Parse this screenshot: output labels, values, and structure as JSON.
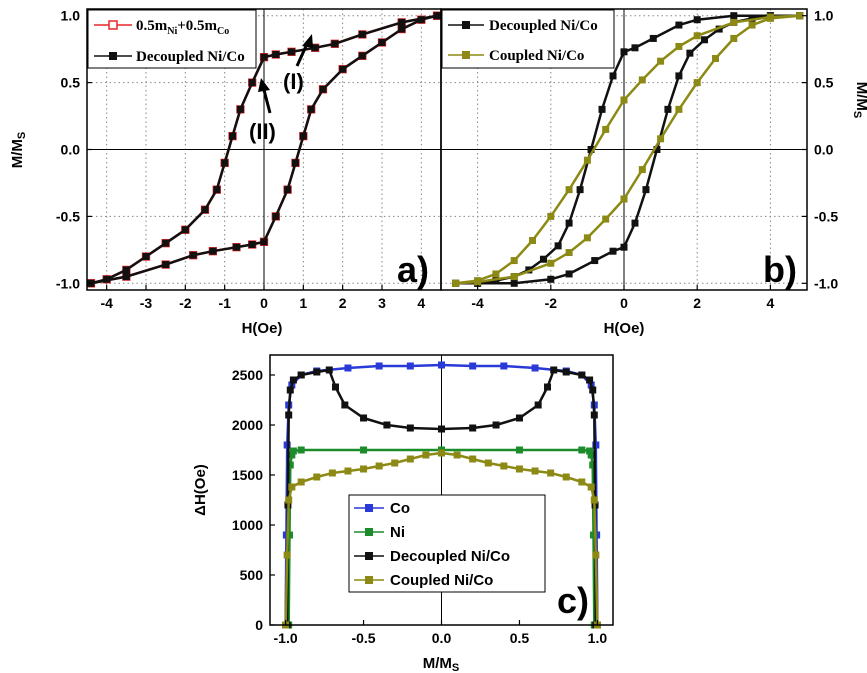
{
  "chart_data": [
    {
      "type": "line",
      "panel_label": "a)",
      "xlabel": "H(Oe)",
      "ylabel": "M/MS",
      "xlim": [
        -4.5,
        4.5
      ],
      "ylim": [
        -1.05,
        1.05
      ],
      "x_ticks": [
        "-4",
        "-3",
        "-2",
        "-1",
        "0",
        "1",
        "2",
        "3",
        "4"
      ],
      "y_ticks": [
        "-1.0",
        "-0.5",
        "0.0",
        "0.5",
        "1.0"
      ],
      "grid": "dotted",
      "legend_position": "top-left",
      "annotations": [
        "(I)",
        "(II)"
      ],
      "series": [
        {
          "name": "0.5mNi+0.5mCo",
          "color": "#e8262a",
          "marker": "open-square",
          "branch_descending": {
            "x": [
              4.4,
              3.5,
              2.5,
              1.8,
              1.3,
              0.7,
              0.3,
              0.0,
              -0.3,
              -0.6,
              -0.8,
              -1.0,
              -1.2,
              -1.5,
              -2.0,
              -2.5,
              -3.0,
              -3.5,
              -4.0,
              -4.4
            ],
            "y": [
              1.0,
              0.95,
              0.86,
              0.79,
              0.76,
              0.73,
              0.71,
              0.69,
              0.5,
              0.3,
              0.1,
              -0.1,
              -0.3,
              -0.45,
              -0.6,
              -0.7,
              -0.8,
              -0.9,
              -0.97,
              -1.0
            ]
          },
          "branch_ascending": {
            "x": [
              -4.4,
              -3.5,
              -2.5,
              -1.8,
              -1.3,
              -0.7,
              -0.3,
              0.0,
              0.3,
              0.6,
              0.8,
              1.0,
              1.2,
              1.5,
              2.0,
              2.5,
              3.0,
              3.5,
              4.0,
              4.4
            ],
            "y": [
              -1.0,
              -0.95,
              -0.86,
              -0.79,
              -0.76,
              -0.73,
              -0.71,
              -0.69,
              -0.5,
              -0.3,
              -0.1,
              0.1,
              0.3,
              0.45,
              0.6,
              0.7,
              0.8,
              0.9,
              0.97,
              1.0
            ]
          }
        },
        {
          "name": "Decoupled Ni/Co",
          "color": "#111111",
          "marker": "filled-square",
          "branch_descending": {
            "x": [
              4.4,
              3.5,
              2.5,
              1.8,
              1.3,
              0.7,
              0.3,
              0.0,
              -0.3,
              -0.6,
              -0.8,
              -1.0,
              -1.2,
              -1.5,
              -2.0,
              -2.5,
              -3.0,
              -3.5,
              -4.0,
              -4.4
            ],
            "y": [
              1.0,
              0.95,
              0.86,
              0.79,
              0.76,
              0.73,
              0.71,
              0.69,
              0.5,
              0.3,
              0.1,
              -0.1,
              -0.3,
              -0.45,
              -0.6,
              -0.7,
              -0.8,
              -0.9,
              -0.97,
              -1.0
            ]
          },
          "branch_ascending": {
            "x": [
              -4.4,
              -3.5,
              -2.5,
              -1.8,
              -1.3,
              -0.7,
              -0.3,
              0.0,
              0.3,
              0.6,
              0.8,
              1.0,
              1.2,
              1.5,
              2.0,
              2.5,
              3.0,
              3.5,
              4.0,
              4.4
            ],
            "y": [
              -1.0,
              -0.95,
              -0.86,
              -0.79,
              -0.76,
              -0.73,
              -0.71,
              -0.69,
              -0.5,
              -0.3,
              -0.1,
              0.1,
              0.3,
              0.45,
              0.6,
              0.7,
              0.8,
              0.9,
              0.97,
              1.0
            ]
          }
        }
      ]
    },
    {
      "type": "line",
      "panel_label": "b)",
      "xlabel": "H(Oe)",
      "ylabel": "M/MS",
      "xlim": [
        -5,
        5
      ],
      "ylim": [
        -1.05,
        1.05
      ],
      "x_ticks": [
        "-4",
        "-2",
        "0",
        "2",
        "4"
      ],
      "y_ticks": [
        "-1.0",
        "-0.5",
        "0.0",
        "0.5",
        "1.0"
      ],
      "grid": "dotted",
      "legend_position": "top-left",
      "series": [
        {
          "name": "Decoupled Ni/Co",
          "color": "#111111",
          "marker": "filled-square",
          "branch_descending": {
            "x": [
              4.8,
              4.0,
              3.0,
              2.0,
              1.5,
              0.8,
              0.3,
              0.0,
              -0.3,
              -0.6,
              -0.9,
              -1.2,
              -1.5,
              -1.8,
              -2.2,
              -2.6,
              -3.0,
              -3.5,
              -4.0,
              -4.6
            ],
            "y": [
              1.0,
              1.0,
              1.0,
              0.97,
              0.93,
              0.83,
              0.76,
              0.73,
              0.55,
              0.3,
              0.0,
              -0.3,
              -0.55,
              -0.72,
              -0.82,
              -0.9,
              -0.95,
              -0.98,
              -1.0,
              -1.0
            ]
          },
          "branch_ascending": {
            "x": [
              -4.6,
              -4.0,
              -3.0,
              -2.0,
              -1.5,
              -0.8,
              -0.3,
              0.0,
              0.3,
              0.6,
              0.9,
              1.2,
              1.5,
              1.8,
              2.2,
              2.6,
              3.0,
              3.5,
              4.0,
              4.8
            ],
            "y": [
              -1.0,
              -1.0,
              -1.0,
              -0.97,
              -0.93,
              -0.83,
              -0.76,
              -0.73,
              -0.55,
              -0.3,
              0.0,
              0.3,
              0.55,
              0.72,
              0.82,
              0.9,
              0.95,
              0.98,
              1.0,
              1.0
            ]
          }
        },
        {
          "name": "Coupled Ni/Co",
          "color": "#8c8a14",
          "marker": "filled-square",
          "branch_descending": {
            "x": [
              4.8,
              4.0,
              3.0,
              2.0,
              1.5,
              1.0,
              0.5,
              0.0,
              -0.5,
              -1.0,
              -1.5,
              -2.0,
              -2.5,
              -3.0,
              -3.5,
              -4.0,
              -4.6
            ],
            "y": [
              1.0,
              0.99,
              0.95,
              0.85,
              0.77,
              0.66,
              0.52,
              0.37,
              0.15,
              -0.08,
              -0.3,
              -0.5,
              -0.68,
              -0.83,
              -0.93,
              -0.98,
              -1.0
            ]
          },
          "branch_ascending": {
            "x": [
              -4.6,
              -4.0,
              -3.0,
              -2.0,
              -1.5,
              -1.0,
              -0.5,
              0.0,
              0.5,
              1.0,
              1.5,
              2.0,
              2.5,
              3.0,
              3.5,
              4.0,
              4.8
            ],
            "y": [
              -1.0,
              -0.99,
              -0.95,
              -0.85,
              -0.77,
              -0.66,
              -0.52,
              -0.37,
              -0.15,
              0.08,
              0.3,
              0.5,
              0.68,
              0.83,
              0.93,
              0.98,
              1.0
            ]
          }
        }
      ]
    },
    {
      "type": "line",
      "panel_label": "c)",
      "xlabel": "M/MS",
      "ylabel": "ΔH(Oe)",
      "xlim": [
        -1.1,
        1.1
      ],
      "ylim": [
        0,
        2700
      ],
      "x_ticks": [
        "-1.0",
        "-0.5",
        "0.0",
        "0.5",
        "1.0"
      ],
      "y_ticks": [
        "0",
        "500",
        "1000",
        "1500",
        "2000",
        "2500"
      ],
      "grid": "none",
      "legend_position": "center-left",
      "series": [
        {
          "name": "Co",
          "color": "#2a3ad6",
          "marker": "filled-square",
          "x": [
            -1.0,
            -0.995,
            -0.99,
            -0.98,
            -0.96,
            -0.9,
            -0.8,
            -0.6,
            -0.4,
            -0.2,
            0.0,
            0.2,
            0.4,
            0.6,
            0.8,
            0.9,
            0.96,
            0.98,
            0.99,
            0.995,
            1.0
          ],
          "y": [
            0,
            900,
            1800,
            2200,
            2400,
            2500,
            2540,
            2570,
            2590,
            2590,
            2600,
            2590,
            2590,
            2570,
            2540,
            2500,
            2400,
            2200,
            1800,
            900,
            0
          ]
        },
        {
          "name": "Ni",
          "color": "#1c8c2a",
          "marker": "filled-square",
          "x": [
            -0.98,
            -0.975,
            -0.97,
            -0.96,
            -0.95,
            -0.9,
            -0.5,
            0.0,
            0.5,
            0.9,
            0.95,
            0.96,
            0.97,
            0.975,
            0.98
          ],
          "y": [
            0,
            900,
            1600,
            1700,
            1740,
            1750,
            1750,
            1750,
            1750,
            1750,
            1740,
            1700,
            1600,
            900,
            0
          ]
        },
        {
          "name": "Decoupled Ni/Co",
          "color": "#111111",
          "marker": "filled-square",
          "x": [
            -0.99,
            -0.985,
            -0.98,
            -0.97,
            -0.95,
            -0.9,
            -0.8,
            -0.72,
            -0.68,
            -0.62,
            -0.5,
            -0.35,
            -0.2,
            0.0,
            0.2,
            0.35,
            0.5,
            0.62,
            0.68,
            0.72,
            0.8,
            0.9,
            0.95,
            0.97,
            0.98,
            0.985,
            0.99
          ],
          "y": [
            0,
            1200,
            2100,
            2350,
            2450,
            2500,
            2530,
            2550,
            2380,
            2200,
            2070,
            2000,
            1970,
            1960,
            1970,
            2000,
            2070,
            2200,
            2380,
            2550,
            2530,
            2500,
            2450,
            2350,
            2100,
            1200,
            0
          ]
        },
        {
          "name": "Coupled Ni/Co",
          "color": "#8c8a14",
          "marker": "filled-square",
          "x": [
            -1.0,
            -0.99,
            -0.98,
            -0.96,
            -0.9,
            -0.8,
            -0.7,
            -0.6,
            -0.5,
            -0.4,
            -0.3,
            -0.2,
            -0.1,
            0.0,
            0.1,
            0.2,
            0.3,
            0.4,
            0.5,
            0.6,
            0.7,
            0.8,
            0.9,
            0.96,
            0.98,
            0.99,
            1.0
          ],
          "y": [
            0,
            700,
            1250,
            1380,
            1430,
            1480,
            1520,
            1540,
            1560,
            1590,
            1620,
            1660,
            1700,
            1720,
            1700,
            1660,
            1620,
            1590,
            1560,
            1540,
            1520,
            1480,
            1430,
            1380,
            1250,
            700,
            0
          ]
        }
      ]
    }
  ]
}
